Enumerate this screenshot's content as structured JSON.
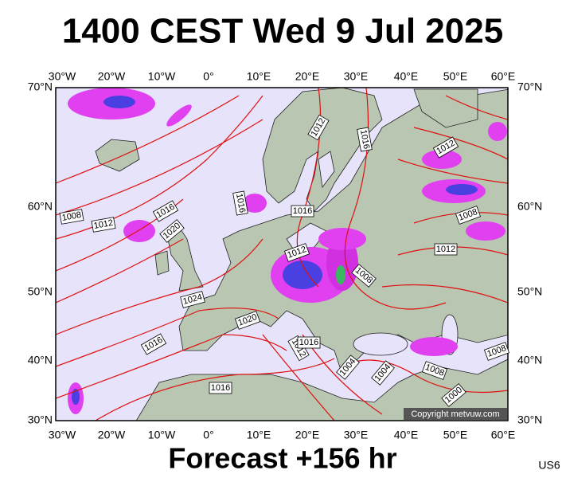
{
  "header": {
    "title": "1400 CEST Wed 9 Jul 2025"
  },
  "map": {
    "lon_labels": [
      "30°W",
      "20°W",
      "10°W",
      "0°",
      "10°E",
      "20°E",
      "30°E",
      "40°E",
      "50°E",
      "60°E"
    ],
    "lat_labels": [
      "70°N",
      "60°N",
      "50°N",
      "40°N",
      "30°N"
    ],
    "isobar_labels": [
      "1012",
      "1016",
      "1012",
      "1008",
      "1012",
      "1016",
      "1020",
      "1016",
      "1016",
      "1008",
      "1012",
      "1012",
      "1008",
      "1024",
      "1020",
      "1016",
      "1012",
      "1016",
      "1004",
      "1004",
      "1008",
      "1008",
      "1000",
      "1016"
    ],
    "copyright": "Copyright metvuw.com"
  },
  "footer": {
    "forecast": "Forecast +156 hr",
    "code": "US6"
  }
}
